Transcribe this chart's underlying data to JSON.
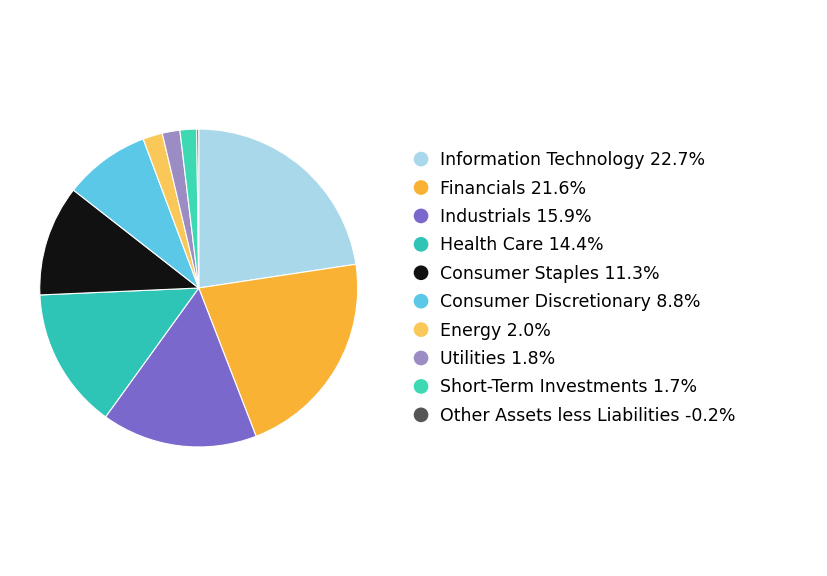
{
  "labels": [
    "Information Technology 22.7%",
    "Financials 21.6%",
    "Industrials 15.9%",
    "Health Care 14.4%",
    "Consumer Staples 11.3%",
    "Consumer Discretionary 8.8%",
    "Energy 2.0%",
    "Utilities 1.8%",
    "Short-Term Investments 1.7%",
    "Other Assets less Liabilities -0.2%"
  ],
  "values": [
    22.7,
    21.6,
    15.9,
    14.4,
    11.3,
    8.8,
    2.0,
    1.8,
    1.7,
    0.2
  ],
  "colors": [
    "#a8d8ea",
    "#f9b234",
    "#7b68cc",
    "#2ec4b6",
    "#111111",
    "#5bc8e8",
    "#f9c858",
    "#9b8dc4",
    "#3dd9b3",
    "#555555"
  ],
  "background_color": "#ffffff",
  "legend_fontsize": 12.5,
  "figsize": [
    8.28,
    5.76
  ]
}
